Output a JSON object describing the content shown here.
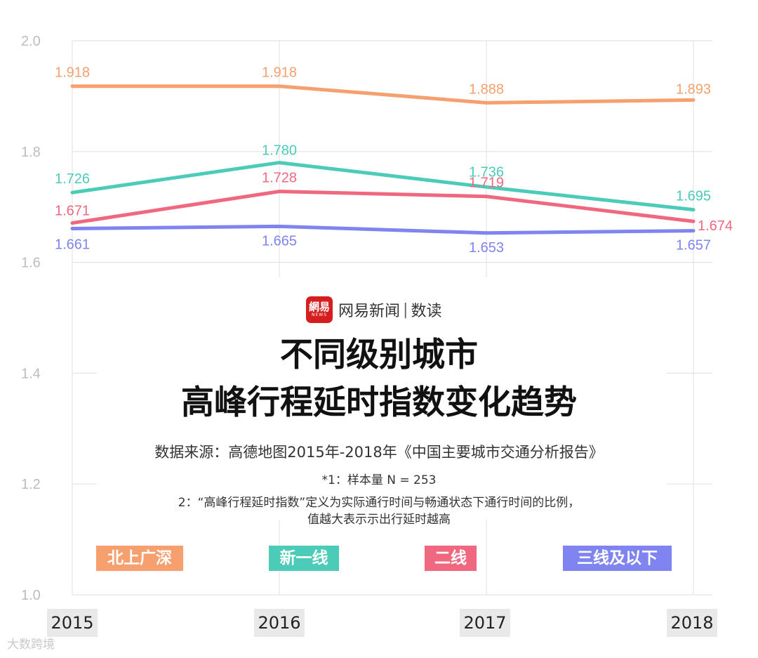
{
  "chart_data": {
    "type": "line",
    "categories": [
      "2015",
      "2016",
      "2017",
      "2018"
    ],
    "ylim": [
      1.0,
      2.0
    ],
    "yticks": [
      "2.0",
      "1.8",
      "1.6",
      "1.4",
      "1.2",
      "1.0"
    ],
    "grid": true,
    "legend_position": "bottom",
    "series": [
      {
        "name": "北上广深",
        "color": "#f5a06e",
        "values": [
          1.918,
          1.918,
          1.888,
          1.893
        ],
        "labels": [
          "1.918",
          "1.918",
          "1.888",
          "1.893"
        ]
      },
      {
        "name": "新一线",
        "color": "#4ccbb8",
        "values": [
          1.726,
          1.78,
          1.736,
          1.695
        ],
        "labels": [
          "1.726",
          "1.780",
          "1.736",
          "1.695"
        ]
      },
      {
        "name": "二线",
        "color": "#f0687f",
        "values": [
          1.671,
          1.728,
          1.719,
          1.674
        ],
        "labels": [
          "1.671",
          "1.728",
          "1.719",
          "1.674"
        ]
      },
      {
        "name": "三线及以下",
        "color": "#7f84f0",
        "values": [
          1.661,
          1.665,
          1.653,
          1.657
        ],
        "labels": [
          "1.661",
          "1.665",
          "1.653",
          "1.657"
        ]
      }
    ]
  },
  "brand": {
    "logo_main": "網易",
    "logo_sub": "NEWS",
    "name": "网易新闻",
    "separator": "|",
    "sub": "数读"
  },
  "title": {
    "line1": "不同级别城市",
    "line2": "高峰行程延时指数变化趋势"
  },
  "source": "数据来源：高德地图2015年-2018年《中国主要城市交通分析报告》",
  "notes": {
    "n1": "*1：样本量 N = 253",
    "n2": "2：“高峰行程延时指数”定义为实际通行时间与畅通状态下通行时间的比例，",
    "n3": "值越大表示示出行延时越高"
  },
  "watermark": "大数跨境"
}
